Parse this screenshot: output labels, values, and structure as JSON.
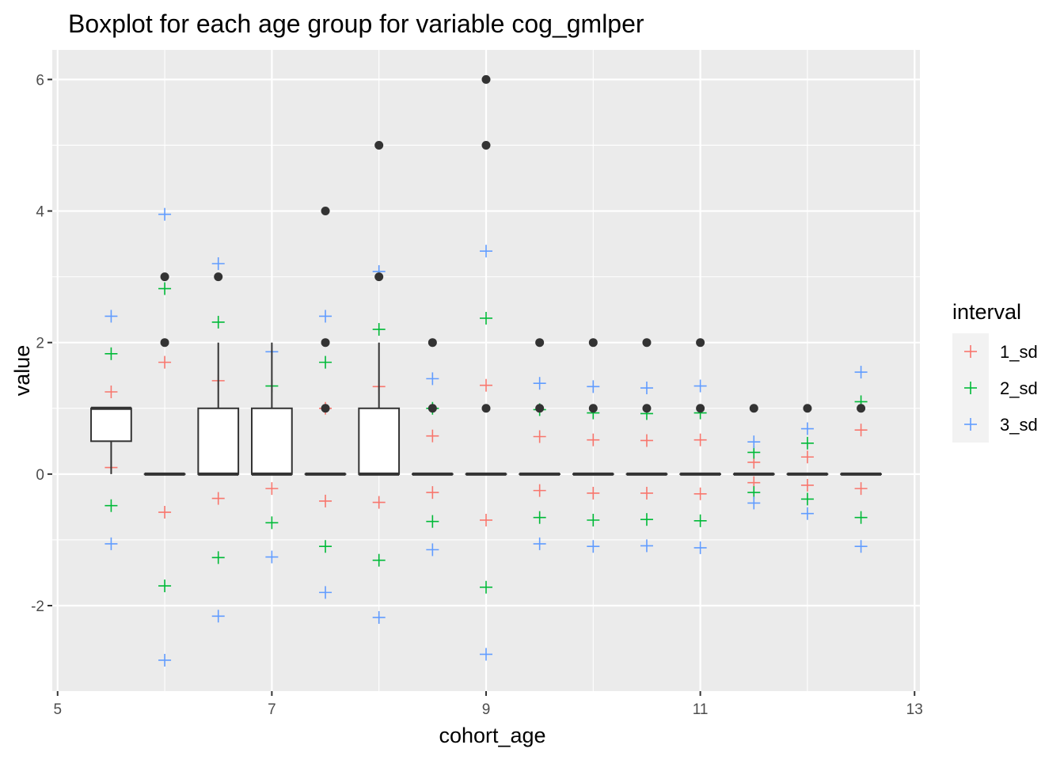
{
  "chart_data": {
    "type": "boxplot",
    "title": "Boxplot for each age group for variable cog_gmlper",
    "xlabel": "cohort_age",
    "ylabel": "value",
    "xlim": [
      4.95,
      13.05
    ],
    "ylim": [
      -3.3,
      6.45
    ],
    "x_ticks": [
      5,
      7,
      9,
      11,
      13
    ],
    "x_tick_labels": [
      "5",
      "7",
      "9",
      "11",
      "13"
    ],
    "y_ticks": [
      -2,
      0,
      2,
      4,
      6
    ],
    "y_tick_labels": [
      "-2",
      "0",
      "2",
      "4",
      "6"
    ],
    "grid": true,
    "legend": {
      "title": "interval",
      "position": "right",
      "entries": [
        {
          "label": "1_sd",
          "color": "#F8766D"
        },
        {
          "label": "2_sd",
          "color": "#00BA38"
        },
        {
          "label": "3_sd",
          "color": "#619CFF"
        }
      ]
    },
    "box_width": 0.375,
    "boxes": [
      {
        "x": 5.5,
        "q1": 0.5,
        "median": 1,
        "q3": 1,
        "whisker_low": 0,
        "whisker_high": 1,
        "outliers": []
      },
      {
        "x": 6.0,
        "q1": 0,
        "median": 0,
        "q3": 0,
        "whisker_low": 0,
        "whisker_high": 0,
        "outliers": [
          2,
          3
        ]
      },
      {
        "x": 6.5,
        "q1": 0,
        "median": 0,
        "q3": 1,
        "whisker_low": 0,
        "whisker_high": 2,
        "outliers": [
          3
        ]
      },
      {
        "x": 7.0,
        "q1": 0,
        "median": 0,
        "q3": 1,
        "whisker_low": 0,
        "whisker_high": 2,
        "outliers": []
      },
      {
        "x": 7.5,
        "q1": 0,
        "median": 0,
        "q3": 0,
        "whisker_low": 0,
        "whisker_high": 0,
        "outliers": [
          1,
          2,
          4
        ]
      },
      {
        "x": 8.0,
        "q1": 0,
        "median": 0,
        "q3": 1,
        "whisker_low": 0,
        "whisker_high": 2,
        "outliers": [
          3,
          5
        ]
      },
      {
        "x": 8.5,
        "q1": 0,
        "median": 0,
        "q3": 0,
        "whisker_low": 0,
        "whisker_high": 0,
        "outliers": [
          1,
          2
        ]
      },
      {
        "x": 9.0,
        "q1": 0,
        "median": 0,
        "q3": 0,
        "whisker_low": 0,
        "whisker_high": 0,
        "outliers": [
          1,
          5,
          6
        ]
      },
      {
        "x": 9.5,
        "q1": 0,
        "median": 0,
        "q3": 0,
        "whisker_low": 0,
        "whisker_high": 0,
        "outliers": [
          1,
          2
        ]
      },
      {
        "x": 10.0,
        "q1": 0,
        "median": 0,
        "q3": 0,
        "whisker_low": 0,
        "whisker_high": 0,
        "outliers": [
          1,
          2
        ]
      },
      {
        "x": 10.5,
        "q1": 0,
        "median": 0,
        "q3": 0,
        "whisker_low": 0,
        "whisker_high": 0,
        "outliers": [
          1,
          2
        ]
      },
      {
        "x": 11.0,
        "q1": 0,
        "median": 0,
        "q3": 0,
        "whisker_low": 0,
        "whisker_high": 0,
        "outliers": [
          1,
          2
        ]
      },
      {
        "x": 11.5,
        "q1": 0,
        "median": 0,
        "q3": 0,
        "whisker_low": 0,
        "whisker_high": 0,
        "outliers": [
          1
        ]
      },
      {
        "x": 12.0,
        "q1": 0,
        "median": 0,
        "q3": 0,
        "whisker_low": 0,
        "whisker_high": 0,
        "outliers": [
          1
        ]
      },
      {
        "x": 12.5,
        "q1": 0,
        "median": 0,
        "q3": 0,
        "whisker_low": 0,
        "whisker_high": 0,
        "outliers": [
          1
        ]
      }
    ],
    "interval_series": [
      {
        "name": "1_sd",
        "color": "#F8766D",
        "points": [
          {
            "x": 5.5,
            "lo": 0.1,
            "hi": 1.25
          },
          {
            "x": 6.0,
            "lo": -0.58,
            "hi": 1.7
          },
          {
            "x": 6.5,
            "lo": -0.37,
            "hi": 1.42
          },
          {
            "x": 7.0,
            "lo": -0.22,
            "hi": 0.82
          },
          {
            "x": 7.5,
            "lo": -0.41,
            "hi": 1.0
          },
          {
            "x": 8.0,
            "lo": -0.43,
            "hi": 1.33
          },
          {
            "x": 8.5,
            "lo": -0.28,
            "hi": 0.58
          },
          {
            "x": 9.0,
            "lo": -0.7,
            "hi": 1.35
          },
          {
            "x": 9.5,
            "lo": -0.25,
            "hi": 0.57
          },
          {
            "x": 10.0,
            "lo": -0.29,
            "hi": 0.52
          },
          {
            "x": 10.5,
            "lo": -0.29,
            "hi": 0.51
          },
          {
            "x": 11.0,
            "lo": -0.3,
            "hi": 0.52
          },
          {
            "x": 11.5,
            "lo": -0.13,
            "hi": 0.18
          },
          {
            "x": 12.0,
            "lo": -0.17,
            "hi": 0.26
          },
          {
            "x": 12.5,
            "lo": -0.22,
            "hi": 0.67
          }
        ]
      },
      {
        "name": "2_sd",
        "color": "#00BA38",
        "points": [
          {
            "x": 5.5,
            "lo": -0.48,
            "hi": 1.83
          },
          {
            "x": 6.0,
            "lo": -1.7,
            "hi": 2.82
          },
          {
            "x": 6.5,
            "lo": -1.27,
            "hi": 2.31
          },
          {
            "x": 7.0,
            "lo": -0.74,
            "hi": 1.34
          },
          {
            "x": 7.5,
            "lo": -1.1,
            "hi": 1.7
          },
          {
            "x": 8.0,
            "lo": -1.31,
            "hi": 2.2
          },
          {
            "x": 8.5,
            "lo": -0.72,
            "hi": 1.0
          },
          {
            "x": 9.0,
            "lo": -1.72,
            "hi": 2.37
          },
          {
            "x": 9.5,
            "lo": -0.66,
            "hi": 0.98
          },
          {
            "x": 10.0,
            "lo": -0.7,
            "hi": 0.93
          },
          {
            "x": 10.5,
            "lo": -0.69,
            "hi": 0.92
          },
          {
            "x": 11.0,
            "lo": -0.71,
            "hi": 0.93
          },
          {
            "x": 11.5,
            "lo": -0.28,
            "hi": 0.33
          },
          {
            "x": 12.0,
            "lo": -0.38,
            "hi": 0.47
          },
          {
            "x": 12.5,
            "lo": -0.66,
            "hi": 1.1
          }
        ]
      },
      {
        "name": "3_sd",
        "color": "#619CFF",
        "points": [
          {
            "x": 5.5,
            "lo": -1.06,
            "hi": 2.4
          },
          {
            "x": 6.0,
            "lo": -2.83,
            "hi": 3.95
          },
          {
            "x": 6.5,
            "lo": -2.16,
            "hi": 3.2
          },
          {
            "x": 7.0,
            "lo": -1.26,
            "hi": 1.86
          },
          {
            "x": 7.5,
            "lo": -1.8,
            "hi": 2.4
          },
          {
            "x": 8.0,
            "lo": -2.18,
            "hi": 3.08
          },
          {
            "x": 8.5,
            "lo": -1.15,
            "hi": 1.45
          },
          {
            "x": 9.0,
            "lo": -2.74,
            "hi": 3.39
          },
          {
            "x": 9.5,
            "lo": -1.06,
            "hi": 1.38
          },
          {
            "x": 10.0,
            "lo": -1.1,
            "hi": 1.33
          },
          {
            "x": 10.5,
            "lo": -1.09,
            "hi": 1.31
          },
          {
            "x": 11.0,
            "lo": -1.12,
            "hi": 1.34
          },
          {
            "x": 11.5,
            "lo": -0.44,
            "hi": 0.49
          },
          {
            "x": 12.0,
            "lo": -0.6,
            "hi": 0.69
          },
          {
            "x": 12.5,
            "lo": -1.1,
            "hi": 1.55
          }
        ]
      }
    ],
    "colors": {
      "panel": "#EBEBEB",
      "grid": "#FFFFFF",
      "box_fill": "#FFFFFF",
      "box_stroke": "#333333",
      "outlier": "#333333"
    }
  }
}
